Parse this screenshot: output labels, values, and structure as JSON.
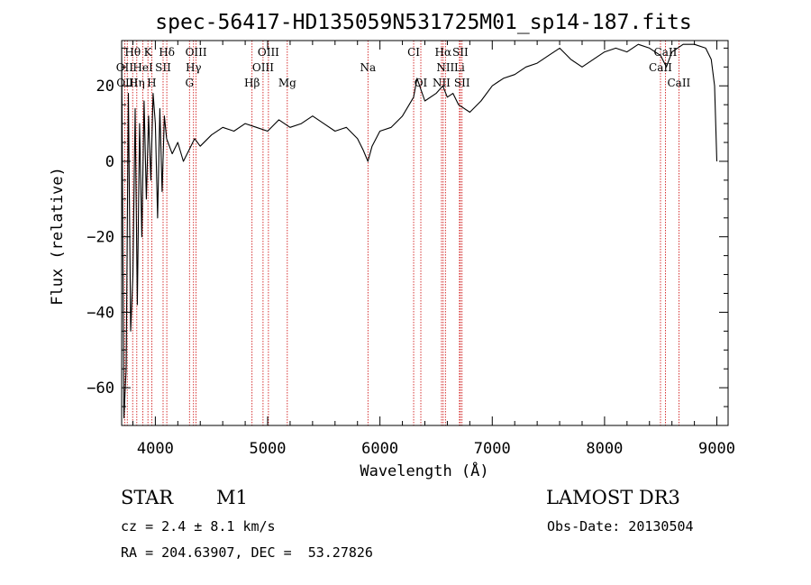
{
  "chart_data": {
    "type": "line",
    "title": "spec-56417-HD135059N531725M01_sp14-187.fits",
    "xlabel": "Wavelength (Å)",
    "ylabel": "Flux (relative)",
    "xlim": [
      3700,
      9100
    ],
    "ylim": [
      -70,
      32
    ],
    "xticks": [
      4000,
      5000,
      6000,
      7000,
      8000,
      9000
    ],
    "yticks": [
      -60,
      -40,
      -20,
      0,
      20
    ],
    "xtick_labels": [
      "4000",
      "5000",
      "6000",
      "7000",
      "8000",
      "9000"
    ],
    "ytick_labels": [
      "−60",
      "−40",
      "−20",
      "0",
      "20"
    ],
    "series": [
      {
        "name": "flux",
        "x": [
          3700,
          3720,
          3740,
          3760,
          3780,
          3800,
          3820,
          3840,
          3860,
          3880,
          3900,
          3920,
          3940,
          3960,
          3980,
          4000,
          4020,
          4040,
          4060,
          4080,
          4100,
          4150,
          4200,
          4250,
          4300,
          4350,
          4400,
          4500,
          4600,
          4700,
          4800,
          4900,
          5000,
          5100,
          5200,
          5300,
          5400,
          5500,
          5600,
          5700,
          5800,
          5850,
          5893,
          5930,
          6000,
          6100,
          6200,
          6300,
          6330,
          6400,
          6500,
          6560,
          6600,
          6650,
          6700,
          6800,
          6900,
          7000,
          7050,
          7100,
          7200,
          7300,
          7400,
          7500,
          7600,
          7700,
          7800,
          7900,
          8000,
          8100,
          8200,
          8300,
          8400,
          8500,
          8550,
          8600,
          8650,
          8700,
          8800,
          8900,
          8950,
          8980,
          9000
        ],
        "y": [
          30,
          -68,
          -55,
          18,
          -45,
          -30,
          14,
          -38,
          10,
          -20,
          16,
          -10,
          12,
          -5,
          18,
          10,
          -15,
          14,
          -8,
          12,
          6,
          2,
          5,
          0,
          3,
          6,
          4,
          7,
          9,
          8,
          10,
          9,
          8,
          11,
          9,
          10,
          12,
          10,
          8,
          9,
          6,
          3,
          0,
          4,
          8,
          9,
          12,
          17,
          22,
          16,
          18,
          20,
          17,
          18,
          15,
          13,
          16,
          20,
          21,
          22,
          23,
          25,
          26,
          28,
          30,
          27,
          25,
          27,
          29,
          30,
          29,
          31,
          30,
          28,
          25,
          29,
          30,
          31,
          31,
          30,
          27,
          20,
          0
        ]
      }
    ],
    "annotations": [
      {
        "label": "Hθ",
        "x": 3798,
        "row": 1
      },
      {
        "label": "K",
        "x": 3934,
        "row": 1
      },
      {
        "label": "Hδ",
        "x": 4102,
        "row": 1
      },
      {
        "label": "OIII",
        "x": 4363,
        "row": 1
      },
      {
        "label": "OIII",
        "x": 5007,
        "row": 1
      },
      {
        "label": "CI",
        "x": 6300,
        "row": 1
      },
      {
        "label": "Hα",
        "x": 6563,
        "row": 1
      },
      {
        "label": "SII",
        "x": 6716,
        "row": 1
      },
      {
        "label": "CaII",
        "x": 8542,
        "row": 1
      },
      {
        "label": "OII",
        "x": 3727,
        "row": 2
      },
      {
        "label": "HeI",
        "x": 3889,
        "row": 2
      },
      {
        "label": "SII",
        "x": 4069,
        "row": 2
      },
      {
        "label": "Hγ",
        "x": 4340,
        "row": 2
      },
      {
        "label": "OIII",
        "x": 4959,
        "row": 2
      },
      {
        "label": "Na",
        "x": 5893,
        "row": 2
      },
      {
        "label": "NII",
        "x": 6583,
        "row": 2
      },
      {
        "label": "Li",
        "x": 6708,
        "row": 2
      },
      {
        "label": "CaII",
        "x": 8498,
        "row": 2
      },
      {
        "label": "OIII",
        "x": 3750,
        "row": 3
      },
      {
        "label": "Hη",
        "x": 3835,
        "row": 3
      },
      {
        "label": "H",
        "x": 3968,
        "row": 3
      },
      {
        "label": "G",
        "x": 4304,
        "row": 3
      },
      {
        "label": "Hβ",
        "x": 4861,
        "row": 3
      },
      {
        "label": "Mg",
        "x": 5175,
        "row": 3
      },
      {
        "label": "OI",
        "x": 6364,
        "row": 3
      },
      {
        "label": "NII",
        "x": 6548,
        "row": 3
      },
      {
        "label": "SII",
        "x": 6731,
        "row": 3
      },
      {
        "label": "CaII",
        "x": 8662,
        "row": 3
      }
    ]
  },
  "info": {
    "object_type": "STAR",
    "subclass": "M1",
    "survey": "LAMOST DR3",
    "cz": "cz = 2.4 ± 8.1 km/s",
    "obs_date": "Obs-Date: 20130504",
    "coords": "RA = 204.63907, DEC =  53.27826"
  },
  "colors": {
    "line": "#000000",
    "marker": "#cc0000",
    "background": "#ffffff"
  }
}
